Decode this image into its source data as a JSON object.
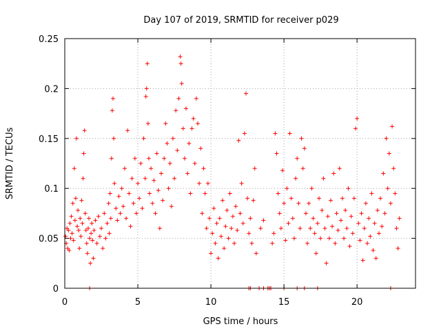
{
  "chart_data": {
    "type": "scatter",
    "title": "Day 107 of 2019, SRMTID for receiver p029",
    "xlabel": "GPS time / hours",
    "ylabel": "SRMTID / TECUs",
    "xlim": [
      0,
      24
    ],
    "ylim": [
      0,
      0.25
    ],
    "xticks": [
      0,
      5,
      10,
      15,
      20
    ],
    "xtick_labels": [
      "0",
      "5",
      "10",
      "15",
      "20"
    ],
    "yticks": [
      0,
      0.05,
      0.1,
      0.15,
      0.2,
      0.25
    ],
    "ytick_labels": [
      "0",
      "0.05",
      "0.1",
      "0.15",
      "0.2",
      "0.25"
    ],
    "grid": true,
    "marker": "+",
    "color": "#ff0000",
    "series": [
      {
        "name": "SRMTID",
        "points": [
          [
            0.05,
            0.052
          ],
          [
            0.1,
            0.045
          ],
          [
            0.15,
            0.06
          ],
          [
            0.2,
            0.04
          ],
          [
            0.25,
            0.058
          ],
          [
            0.3,
            0.038
          ],
          [
            0.35,
            0.065
          ],
          [
            0.4,
            0.05
          ],
          [
            0.45,
            0.072
          ],
          [
            0.5,
            0.055
          ],
          [
            0.55,
            0.085
          ],
          [
            0.6,
            0.048
          ],
          [
            0.65,
            0.12
          ],
          [
            0.7,
            0.068
          ],
          [
            0.75,
            0.09
          ],
          [
            0.8,
            0.15
          ],
          [
            0.85,
            0.062
          ],
          [
            0.9,
            0.078
          ],
          [
            0.95,
            0.058
          ],
          [
            1.0,
            0.04
          ],
          [
            1.05,
            0.07
          ],
          [
            1.1,
            0.052
          ],
          [
            1.15,
            0.088
          ],
          [
            1.2,
            0.065
          ],
          [
            1.25,
            0.11
          ],
          [
            1.3,
            0.135
          ],
          [
            1.35,
            0.158
          ],
          [
            1.4,
            0.075
          ],
          [
            1.45,
            0.058
          ],
          [
            1.5,
            0.045
          ],
          [
            1.55,
            0.035
          ],
          [
            1.6,
            0.06
          ],
          [
            1.65,
            0.07
          ],
          [
            1.7,
            0.05
          ],
          [
            1.75,
            0.025
          ],
          [
            1.8,
            0.055
          ],
          [
            1.85,
            0.065
          ],
          [
            1.9,
            0.048
          ],
          [
            1.95,
            0.03
          ],
          [
            2.0,
            0.058
          ],
          [
            2.1,
            0.068
          ],
          [
            2.2,
            0.045
          ],
          [
            2.3,
            0.072
          ],
          [
            2.4,
            0.052
          ],
          [
            2.5,
            0.06
          ],
          [
            2.6,
            0.04
          ],
          [
            2.7,
            0.075
          ],
          [
            2.8,
            0.05
          ],
          [
            2.9,
            0.065
          ],
          [
            3.0,
            0.085
          ],
          [
            3.05,
            0.055
          ],
          [
            3.1,
            0.095
          ],
          [
            3.15,
            0.07
          ],
          [
            3.2,
            0.13
          ],
          [
            3.25,
            0.178
          ],
          [
            3.3,
            0.19
          ],
          [
            3.35,
            0.15
          ],
          [
            3.4,
            0.105
          ],
          [
            3.5,
            0.08
          ],
          [
            3.6,
            0.068
          ],
          [
            3.7,
            0.092
          ],
          [
            3.8,
            0.075
          ],
          [
            3.9,
            0.1
          ],
          [
            4.0,
            0.082
          ],
          [
            4.1,
            0.12
          ],
          [
            4.2,
            0.07
          ],
          [
            4.3,
            0.158
          ],
          [
            4.4,
            0.095
          ],
          [
            4.5,
            0.062
          ],
          [
            4.6,
            0.11
          ],
          [
            4.7,
            0.085
          ],
          [
            4.8,
            0.13
          ],
          [
            4.9,
            0.075
          ],
          [
            5.0,
            0.105
          ],
          [
            5.1,
            0.09
          ],
          [
            5.2,
            0.125
          ],
          [
            5.3,
            0.08
          ],
          [
            5.4,
            0.15
          ],
          [
            5.5,
            0.11
          ],
          [
            5.55,
            0.192
          ],
          [
            5.6,
            0.2
          ],
          [
            5.65,
            0.225
          ],
          [
            5.7,
            0.165
          ],
          [
            5.75,
            0.13
          ],
          [
            5.8,
            0.095
          ],
          [
            5.9,
            0.12
          ],
          [
            6.0,
            0.085
          ],
          [
            6.1,
            0.108
          ],
          [
            6.2,
            0.075
          ],
          [
            6.3,
            0.135
          ],
          [
            6.4,
            0.098
          ],
          [
            6.5,
            0.06
          ],
          [
            6.6,
            0.115
          ],
          [
            6.7,
            0.088
          ],
          [
            6.8,
            0.13
          ],
          [
            6.9,
            0.165
          ],
          [
            7.0,
            0.145
          ],
          [
            7.1,
            0.1
          ],
          [
            7.2,
            0.125
          ],
          [
            7.3,
            0.082
          ],
          [
            7.4,
            0.15
          ],
          [
            7.5,
            0.11
          ],
          [
            7.6,
            0.178
          ],
          [
            7.7,
            0.138
          ],
          [
            7.8,
            0.19
          ],
          [
            7.9,
            0.232
          ],
          [
            7.95,
            0.225
          ],
          [
            8.0,
            0.205
          ],
          [
            8.1,
            0.16
          ],
          [
            8.2,
            0.13
          ],
          [
            8.3,
            0.18
          ],
          [
            8.4,
            0.115
          ],
          [
            8.5,
            0.145
          ],
          [
            8.6,
            0.095
          ],
          [
            8.7,
            0.16
          ],
          [
            8.8,
            0.17
          ],
          [
            8.9,
            0.125
          ],
          [
            9.0,
            0.19
          ],
          [
            9.1,
            0.165
          ],
          [
            9.2,
            0.105
          ],
          [
            9.3,
            0.14
          ],
          [
            9.4,
            0.075
          ],
          [
            9.5,
            0.12
          ],
          [
            9.6,
            0.095
          ],
          [
            9.7,
            0.06
          ],
          [
            9.8,
            0.105
          ],
          [
            9.9,
            0.07
          ],
          [
            10.0,
            0.035
          ],
          [
            10.1,
            0.055
          ],
          [
            10.2,
            0.08
          ],
          [
            10.3,
            0.045
          ],
          [
            10.4,
            0.065
          ],
          [
            10.5,
            0.03
          ],
          [
            10.6,
            0.07
          ],
          [
            10.7,
            0.052
          ],
          [
            10.8,
            0.088
          ],
          [
            10.9,
            0.04
          ],
          [
            11.0,
            0.062
          ],
          [
            11.1,
            0.078
          ],
          [
            11.2,
            0.05
          ],
          [
            11.3,
            0.095
          ],
          [
            11.4,
            0.06
          ],
          [
            11.5,
            0.072
          ],
          [
            11.6,
            0.045
          ],
          [
            11.7,
            0.082
          ],
          [
            11.8,
            0.058
          ],
          [
            11.9,
            0.148
          ],
          [
            12.0,
            0.075
          ],
          [
            12.1,
            0.105
          ],
          [
            12.2,
            0.065
          ],
          [
            12.3,
            0.155
          ],
          [
            12.4,
            0.195
          ],
          [
            12.5,
            0.09
          ],
          [
            12.6,
            0.055
          ],
          [
            12.7,
            0.07
          ],
          [
            12.8,
            0.045
          ],
          [
            12.9,
            0.088
          ],
          [
            13.0,
            0.12
          ],
          [
            13.1,
            0.035
          ],
          [
            13.4,
            0.06
          ],
          [
            13.6,
            0.068
          ],
          [
            14.2,
            0.045
          ],
          [
            14.3,
            0.055
          ],
          [
            14.4,
            0.155
          ],
          [
            14.5,
            0.135
          ],
          [
            14.6,
            0.095
          ],
          [
            14.7,
            0.075
          ],
          [
            14.8,
            0.06
          ],
          [
            14.9,
            0.118
          ],
          [
            15.0,
            0.085
          ],
          [
            15.1,
            0.048
          ],
          [
            15.2,
            0.1
          ],
          [
            15.3,
            0.065
          ],
          [
            15.4,
            0.155
          ],
          [
            15.5,
            0.09
          ],
          [
            15.6,
            0.07
          ],
          [
            15.7,
            0.05
          ],
          [
            15.8,
            0.11
          ],
          [
            15.9,
            0.13
          ],
          [
            16.0,
            0.085
          ],
          [
            16.1,
            0.06
          ],
          [
            16.2,
            0.15
          ],
          [
            16.3,
            0.12
          ],
          [
            16.4,
            0.14
          ],
          [
            16.5,
            0.075
          ],
          [
            16.6,
            0.045
          ],
          [
            16.7,
            0.085
          ],
          [
            16.8,
            0.06
          ],
          [
            16.9,
            0.1
          ],
          [
            17.0,
            0.07
          ],
          [
            17.1,
            0.055
          ],
          [
            17.2,
            0.035
          ],
          [
            17.3,
            0.065
          ],
          [
            17.4,
            0.09
          ],
          [
            17.5,
            0.05
          ],
          [
            17.6,
            0.078
          ],
          [
            17.7,
            0.11
          ],
          [
            17.8,
            0.06
          ],
          [
            17.9,
            0.025
          ],
          [
            18.0,
            0.072
          ],
          [
            18.1,
            0.05
          ],
          [
            18.2,
            0.088
          ],
          [
            18.3,
            0.062
          ],
          [
            18.4,
            0.115
          ],
          [
            18.5,
            0.045
          ],
          [
            18.6,
            0.075
          ],
          [
            18.7,
            0.058
          ],
          [
            18.8,
            0.12
          ],
          [
            18.9,
            0.068
          ],
          [
            19.0,
            0.09
          ],
          [
            19.1,
            0.05
          ],
          [
            19.2,
            0.078
          ],
          [
            19.3,
            0.06
          ],
          [
            19.4,
            0.1
          ],
          [
            19.5,
            0.042
          ],
          [
            19.6,
            0.072
          ],
          [
            19.7,
            0.055
          ],
          [
            19.8,
            0.09
          ],
          [
            19.9,
            0.16
          ],
          [
            20.0,
            0.17
          ],
          [
            20.1,
            0.065
          ],
          [
            20.2,
            0.048
          ],
          [
            20.3,
            0.075
          ],
          [
            20.4,
            0.028
          ],
          [
            20.5,
            0.06
          ],
          [
            20.6,
            0.085
          ],
          [
            20.7,
            0.045
          ],
          [
            20.8,
            0.07
          ],
          [
            20.9,
            0.052
          ],
          [
            21.0,
            0.095
          ],
          [
            21.1,
            0.038
          ],
          [
            21.2,
            0.065
          ],
          [
            21.3,
            0.03
          ],
          [
            21.4,
            0.078
          ],
          [
            21.5,
            0.055
          ],
          [
            21.6,
            0.09
          ],
          [
            21.7,
            0.062
          ],
          [
            21.8,
            0.115
          ],
          [
            21.9,
            0.075
          ],
          [
            22.0,
            0.15
          ],
          [
            22.1,
            0.1
          ],
          [
            22.2,
            0.135
          ],
          [
            22.3,
            0.085
          ],
          [
            22.4,
            0.162
          ],
          [
            22.5,
            0.12
          ],
          [
            22.6,
            0.095
          ],
          [
            22.7,
            0.06
          ],
          [
            22.8,
            0.04
          ],
          [
            22.9,
            0.07
          ],
          [
            1.7,
            0.0
          ],
          [
            12.6,
            0.0
          ],
          [
            12.7,
            0.0
          ],
          [
            13.3,
            0.0
          ],
          [
            13.6,
            0.0
          ],
          [
            13.9,
            0.0
          ],
          [
            14.0,
            0.0
          ],
          [
            14.1,
            0.0
          ],
          [
            15.0,
            0.0
          ],
          [
            15.9,
            0.0
          ],
          [
            16.4,
            0.0
          ],
          [
            17.3,
            0.0
          ],
          [
            22.3,
            0.0
          ]
        ]
      }
    ]
  }
}
